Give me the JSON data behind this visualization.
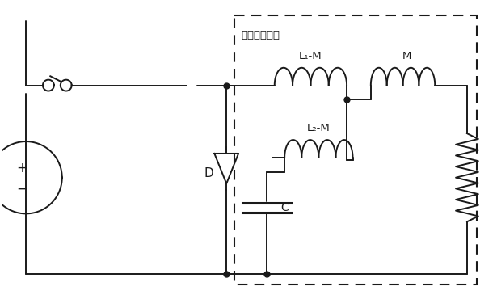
{
  "title": "纹波抗消电路",
  "background_color": "#ffffff",
  "line_color": "#1a1a1a",
  "font_size": 10,
  "components": {
    "inductor_L1M_label": "L₁-M",
    "inductor_M_label": "M",
    "inductor_L2M_label": "L₂-M",
    "capacitor_label": "C",
    "diode_label": "D"
  }
}
